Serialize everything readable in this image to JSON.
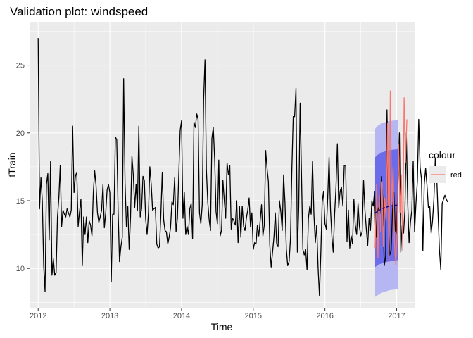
{
  "chart_data": {
    "type": "line",
    "title": "Validation plot: windspeed",
    "xlabel": "Time",
    "ylabel": "tTrain",
    "xlim": [
      2011.88,
      2017.25
    ],
    "ylim": [
      7.1,
      28.2
    ],
    "x_ticks": [
      2012,
      2013,
      2014,
      2015,
      2016,
      2017
    ],
    "x_tick_labels": [
      "2012",
      "2013",
      "2014",
      "2015",
      "2016",
      "2017"
    ],
    "y_ticks": [
      10,
      15,
      20,
      25
    ],
    "y_tick_labels": [
      "10",
      "15",
      "20",
      "25"
    ],
    "grid": true,
    "legend": {
      "title": "colour",
      "position": "right",
      "entries": [
        {
          "label": "red",
          "color": "#F8766D"
        }
      ]
    },
    "colors": {
      "panel_background": "#EBEBEB",
      "grid_line": "#FFFFFF",
      "train_line": "#000000",
      "validation_line": "#F8766D",
      "forecast_mean": "#00008B",
      "band_80": "#6C6CEA",
      "band_95": "#B6B6F3"
    },
    "series": [
      {
        "role": "train",
        "color": "#000000",
        "x_start": 2012.0,
        "x_step": 0.01923,
        "values": [
          27.0,
          14.4,
          16.7,
          15.0,
          10.2,
          8.3,
          16.2,
          17.0,
          12.1,
          17.9,
          9.5,
          10.7,
          9.5,
          9.7,
          13.8,
          15.2,
          17.6,
          13.1,
          14.3,
          14.0,
          13.8,
          14.4,
          14.1,
          13.8,
          14.3,
          20.5,
          15.6,
          16.8,
          17.1,
          13.1,
          14.2,
          15.1,
          10.2,
          13.8,
          12.5,
          13.8,
          11.9,
          13.5,
          13.2,
          12.4,
          15.6,
          17.2,
          16.1,
          14.1,
          13.4,
          13.8,
          14.3,
          16.2,
          13.0,
          14.1,
          15.8,
          16.2,
          15.6,
          9.0,
          14.0,
          14.0,
          19.7,
          19.5,
          14.2,
          10.5,
          11.6,
          12.3,
          24.0,
          16.4,
          13.1,
          14.6,
          11.4,
          13.8,
          18.3,
          16.9,
          14.5,
          16.2,
          14.3,
          20.5,
          13.8,
          14.4,
          16.8,
          16.5,
          13.6,
          12.5,
          14.1,
          17.5,
          16.2,
          14.3,
          14.4,
          14.5,
          11.8,
          11.5,
          11.6,
          14.0,
          17.1,
          13.6,
          12.8,
          12.7,
          11.8,
          12.3,
          13.0,
          14.9,
          14.7,
          16.7,
          12.7,
          13.7,
          17.0,
          20.2,
          20.9,
          13.7,
          15.6,
          12.5,
          13.1,
          12.5,
          14.4,
          14.8,
          12.2,
          20.8,
          20.4,
          21.4,
          21.0,
          14.1,
          13.3,
          14.7,
          22.5,
          25.4,
          17.3,
          14.9,
          13.6,
          12.8,
          19.6,
          20.4,
          18.1,
          14.2,
          13.3,
          18.0,
          12.4,
          12.8,
          16.5,
          15.0,
          13.7,
          17.8,
          16.9,
          17.6,
          12.9,
          13.7,
          13.5,
          13.2,
          15.0,
          11.9,
          14.6,
          12.3,
          14.6,
          13.1,
          12.8,
          13.7,
          14.3,
          15.2,
          13.1,
          14.1,
          11.4,
          11.9,
          11.8,
          13.2,
          12.4,
          13.5,
          14.7,
          12.4,
          13.2,
          18.7,
          17.4,
          16.4,
          11.7,
          10.1,
          11.2,
          12.3,
          14.1,
          11.8,
          11.6,
          15.0,
          14.2,
          12.8,
          16.9,
          14.9,
          11.4,
          10.2,
          10.5,
          12.2,
          17.3,
          21.2,
          21.2,
          23.3,
          11.2,
          14.5,
          22.2,
          16.9,
          11.4,
          11.0,
          11.4,
          9.9,
          13.7,
          14.6,
          14.0,
          17.9,
          14.0,
          11.9,
          13.2,
          10.1,
          8.0,
          11.1,
          14.9,
          15.7,
          13.3,
          12.9,
          15.2,
          18.2,
          14.4,
          12.4,
          11.2,
          14.0,
          16.0,
          19.2,
          14.5,
          15.7,
          16.0,
          14.6,
          17.6,
          17.6,
          12.0,
          14.3,
          11.5,
          12.4,
          11.8,
          15.1,
          13.2,
          12.5,
          14.8,
          13.1,
          12.4,
          12.7,
          16.5,
          14.3,
          12.9,
          11.7,
          13.7,
          12.8,
          15.0,
          14.6,
          15.7,
          12.3,
          14.2,
          14.5,
          14.0,
          16.8,
          15.0,
          10.2,
          10.9,
          21.7,
          14.7,
          11.0,
          11.3,
          14.3,
          15.6,
          12.8,
          12.6,
          16.5,
          20.0,
          11.2,
          13.2,
          12.6,
          14.3,
          20.0,
          14.9,
          11.9,
          13.4,
          14.3,
          17.9,
          12.7,
          14.8,
          16.4,
          21.0,
          17.5,
          16.6,
          11.3,
          16.2,
          17.4,
          16.1,
          14.5,
          14.6,
          12.6,
          13.5,
          15.1,
          18.1,
          16.9,
          14.1,
          11.4,
          9.9,
          14.8,
          15.1,
          15.4,
          15.1,
          14.9
        ]
      },
      {
        "role": "validation",
        "name": "red",
        "color": "#F8766D",
        "x_start": 2016.7,
        "x_step": 0.01923,
        "values": [
          11.5,
          16.2,
          10.8,
          15.4,
          12.7,
          16.4,
          11.6,
          15.2,
          13.5,
          20.7,
          10.4,
          23.1,
          14.7,
          17.5,
          11.9,
          10.2,
          12.9,
          19.2,
          14.1,
          16.9,
          11.3,
          22.6,
          17.8,
          21.0
        ]
      }
    ],
    "forecast": {
      "x_start": 2016.7,
      "x_end": 2017.02,
      "mean": [
        14.1,
        14.2,
        14.3,
        14.4,
        14.45,
        14.5,
        14.55,
        14.6,
        14.62,
        14.65,
        14.67,
        14.7
      ],
      "lo80": [
        10.1,
        10.2,
        10.3,
        10.35,
        10.4,
        10.45,
        10.5,
        10.52,
        10.55,
        10.57,
        10.6,
        10.6
      ],
      "hi80": [
        18.2,
        18.35,
        18.5,
        18.55,
        18.6,
        18.65,
        18.7,
        18.72,
        18.75,
        18.77,
        18.78,
        18.8
      ],
      "lo95": [
        7.9,
        8.0,
        8.1,
        8.2,
        8.25,
        8.3,
        8.35,
        8.4,
        8.42,
        8.44,
        8.45,
        8.45
      ],
      "hi95": [
        20.3,
        20.5,
        20.6,
        20.7,
        20.75,
        20.8,
        20.85,
        20.88,
        20.9,
        20.92,
        20.93,
        20.95
      ]
    }
  }
}
